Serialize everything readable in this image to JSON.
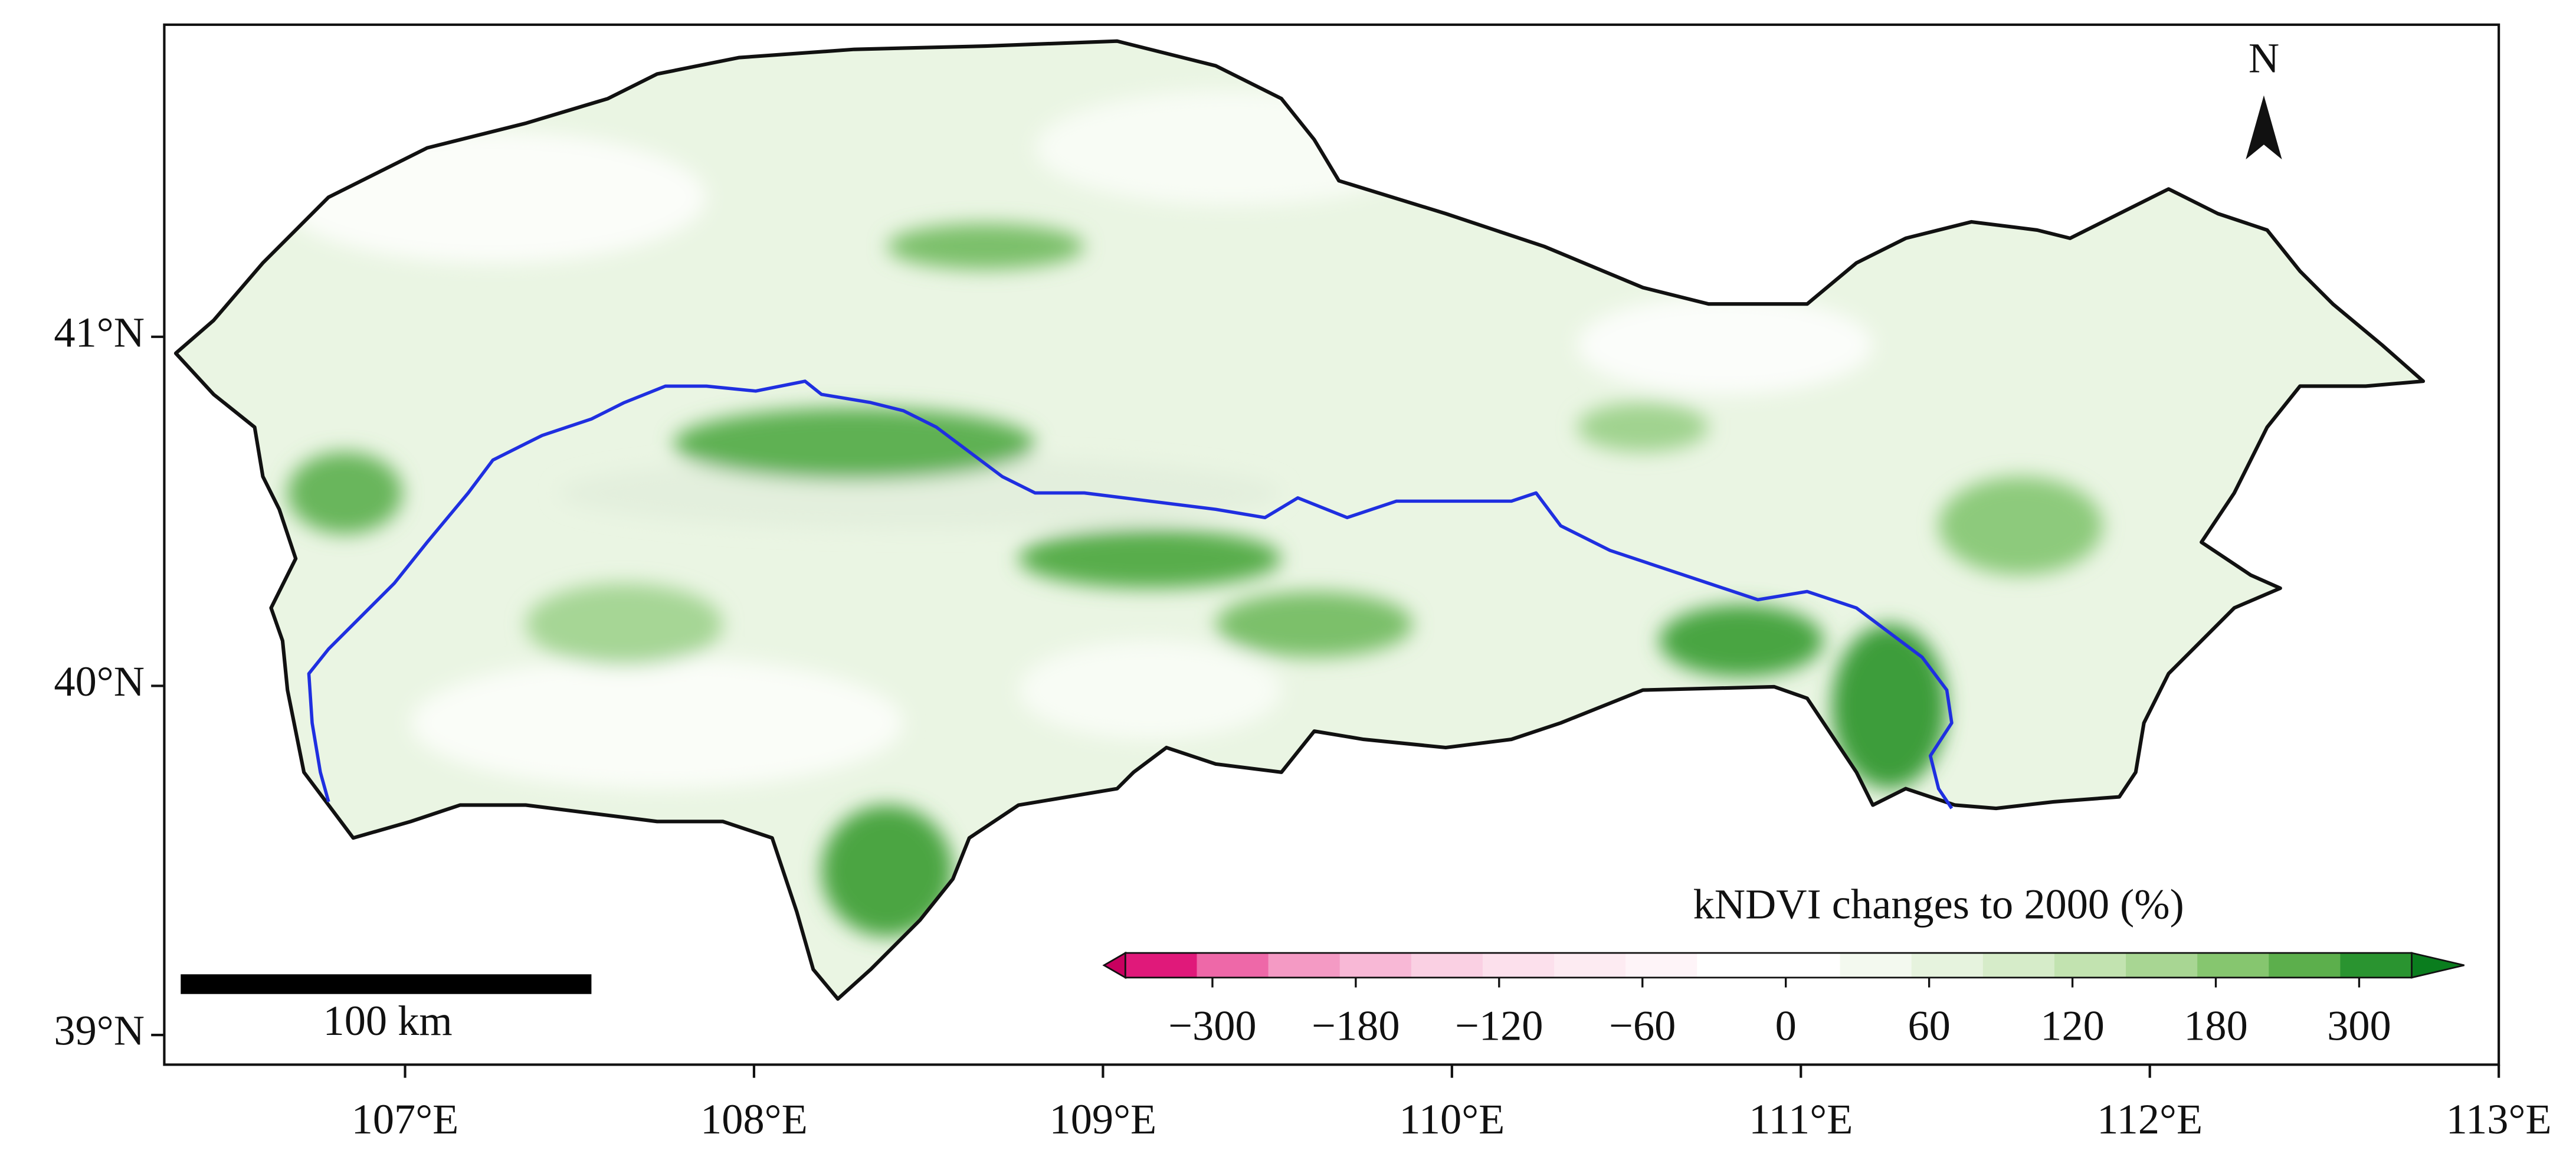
{
  "map": {
    "xlim": [
      106.31,
      113
    ],
    "ylim": [
      38.915,
      41.894
    ],
    "xticks": [
      {
        "value": 107,
        "label": "107°E"
      },
      {
        "value": 108,
        "label": "108°E"
      },
      {
        "value": 109,
        "label": "109°E"
      },
      {
        "value": 110,
        "label": "110°E"
      },
      {
        "value": 111,
        "label": "111°E"
      },
      {
        "value": 112,
        "label": "112°E"
      },
      {
        "value": 113,
        "label": "113°E"
      }
    ],
    "yticks": [
      {
        "value": 39,
        "label": "39°N"
      },
      {
        "value": 40,
        "label": "40°N"
      },
      {
        "value": 41,
        "label": "41°N"
      }
    ],
    "north_label": "N",
    "scale_bar": {
      "label": "100 km"
    },
    "colorbar": {
      "title": "kNDVI changes to 2000 (%)",
      "ticks": [
        {
          "value": -300,
          "label": "−300"
        },
        {
          "value": -180,
          "label": "−180"
        },
        {
          "value": -120,
          "label": "−120"
        },
        {
          "value": -60,
          "label": "−60"
        },
        0,
        60,
        120,
        180,
        300
      ],
      "colors": [
        "#e0197a",
        "#ee68a8",
        "#f49ac4",
        "#f8b8d6",
        "#fad0e3",
        "#fce0ec",
        "#fdebf2",
        "#fef4f8",
        "#ffffff",
        "#ffffff",
        "#f3f9ef",
        "#e6f3de",
        "#d6ecc9",
        "#c2e3b0",
        "#a8d693",
        "#86c66f",
        "#5caf4c",
        "#2a9430"
      ],
      "under_color": "#c8005f",
      "over_color": "#0a7d1e"
    }
  }
}
